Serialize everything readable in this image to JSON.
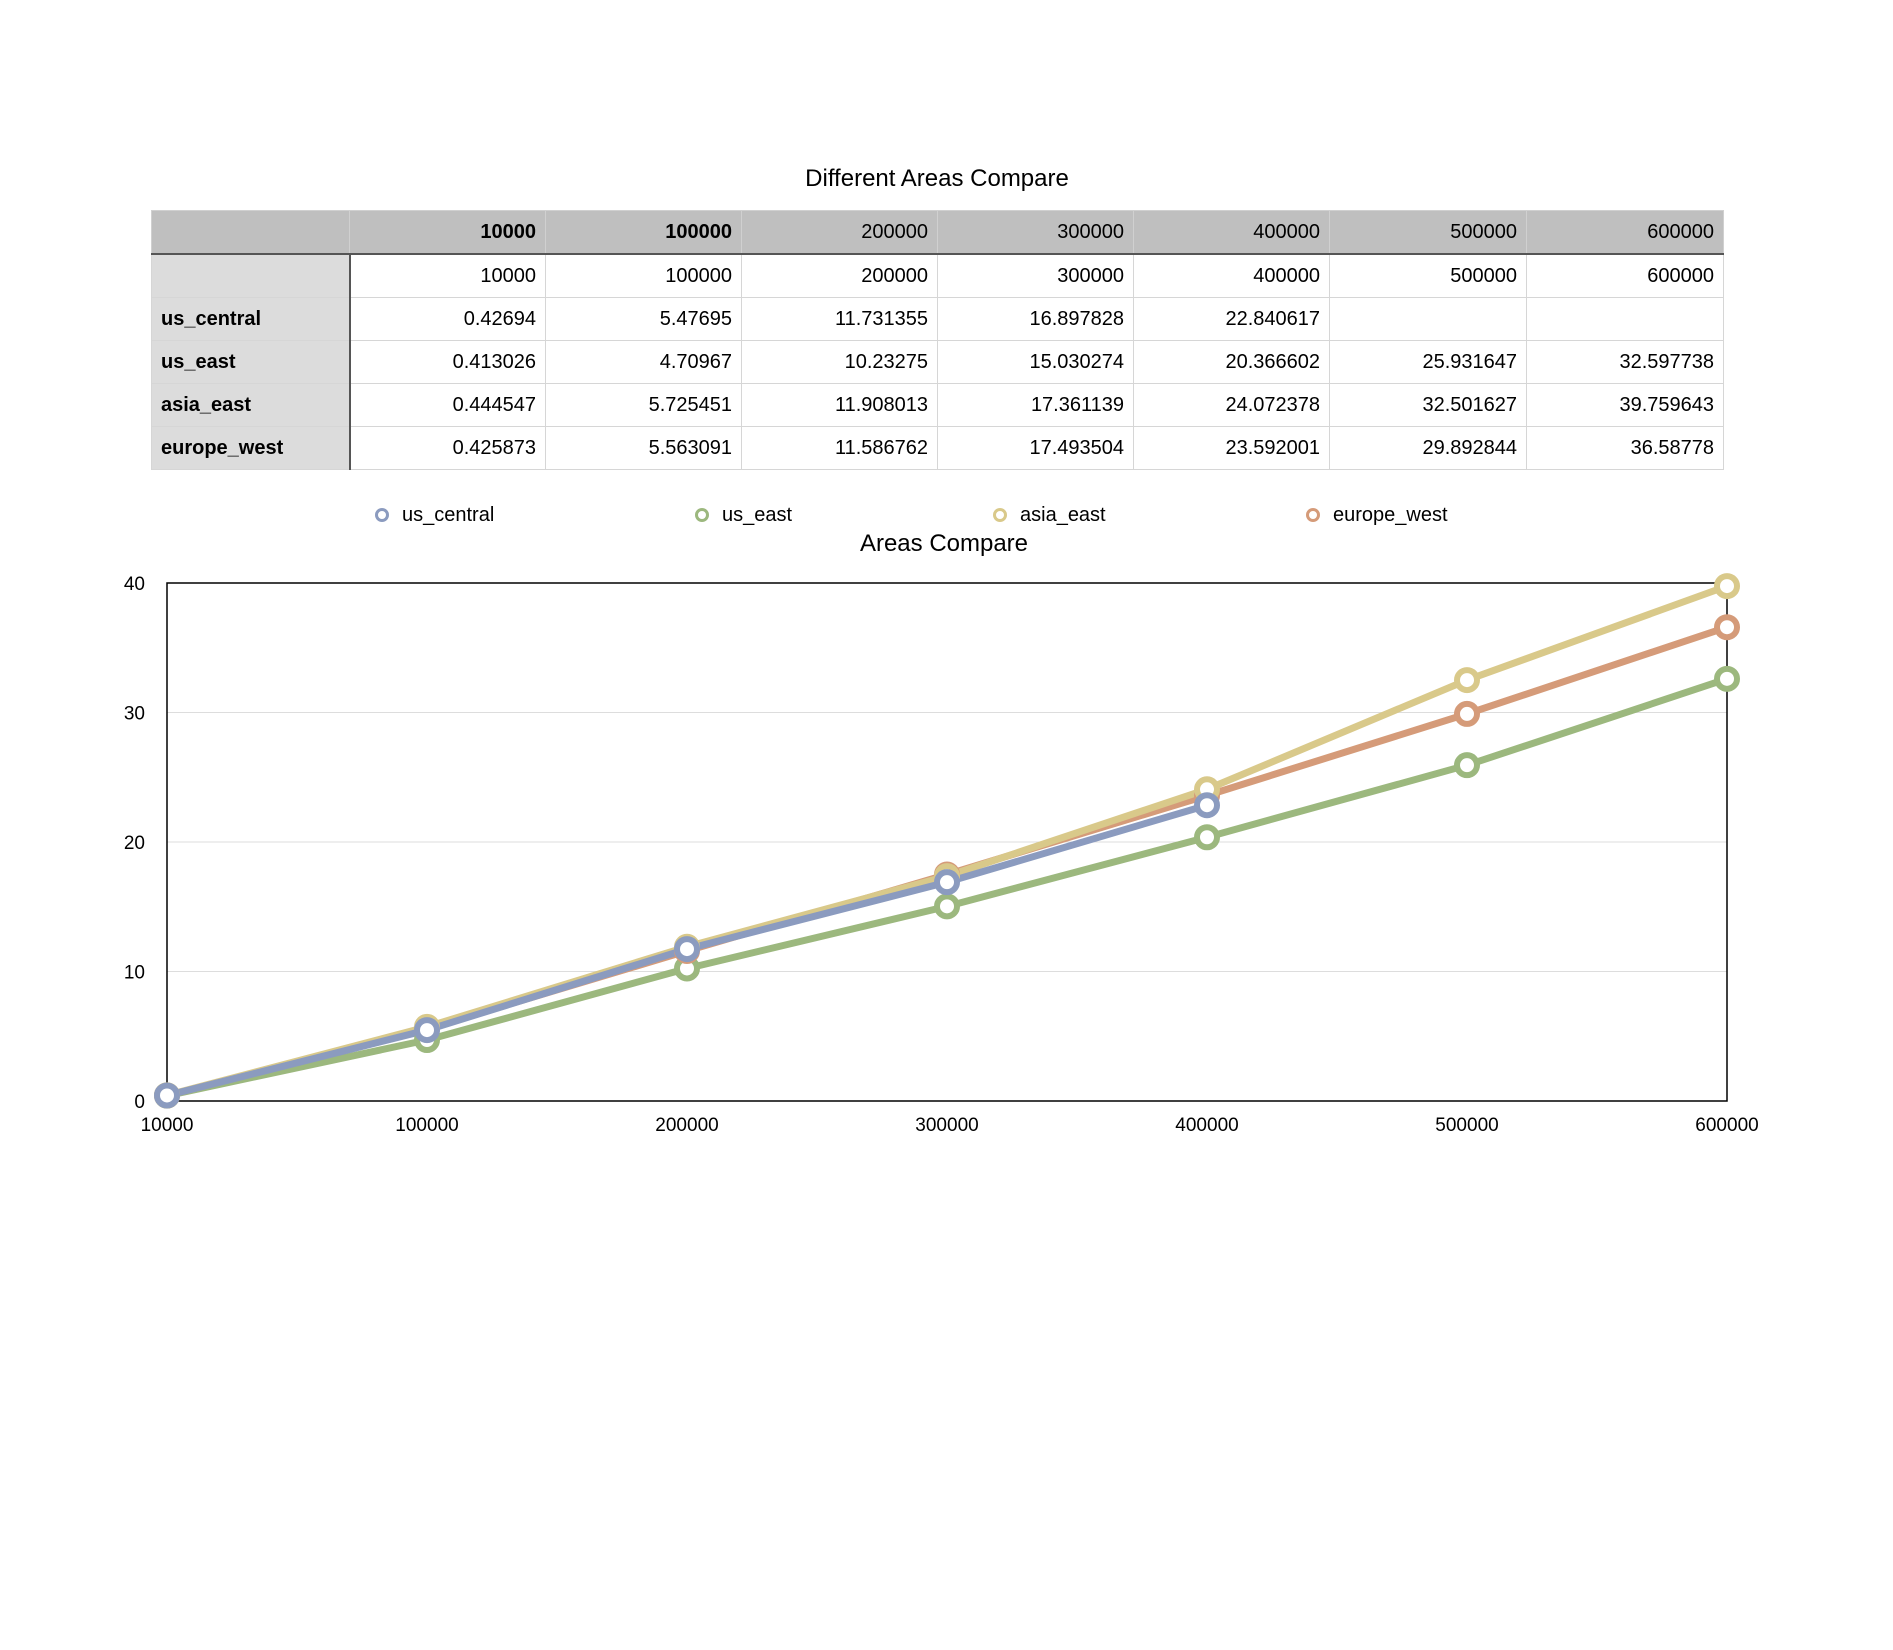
{
  "table": {
    "title": "Different Areas Compare",
    "header": [
      "",
      "10000",
      "100000",
      "200000",
      "300000",
      "400000",
      "500000",
      "600000"
    ],
    "header_bold": [
      false,
      true,
      true,
      false,
      false,
      false,
      false,
      false
    ],
    "rows": [
      {
        "label": "",
        "cells": [
          "10000",
          "100000",
          "200000",
          "300000",
          "400000",
          "500000",
          "600000"
        ]
      },
      {
        "label": "us_central",
        "cells": [
          "0.42694",
          "5.47695",
          "11.731355",
          "16.897828",
          "22.840617",
          "",
          ""
        ]
      },
      {
        "label": "us_east",
        "cells": [
          "0.413026",
          "4.70967",
          "10.23275",
          "15.030274",
          "20.366602",
          "25.931647",
          "32.597738"
        ]
      },
      {
        "label": "asia_east",
        "cells": [
          "0.444547",
          "5.725451",
          "11.908013",
          "17.361139",
          "24.072378",
          "32.501627",
          "39.759643"
        ]
      },
      {
        "label": "europe_west",
        "cells": [
          "0.425873",
          "5.563091",
          "11.586762",
          "17.493504",
          "23.592001",
          "29.892844",
          "36.58778"
        ]
      }
    ]
  },
  "chart_data": {
    "type": "line",
    "title": "Areas Compare",
    "xlabel": "",
    "ylabel": "",
    "categories": [
      "10000",
      "100000",
      "200000",
      "300000",
      "400000",
      "500000",
      "600000"
    ],
    "ylim": [
      0,
      40
    ],
    "yticks": [
      0,
      10,
      20,
      30,
      40
    ],
    "grid": true,
    "legend_position": "top",
    "series": [
      {
        "name": "us_central",
        "color": "#8b9bbf",
        "values": [
          0.42694,
          5.47695,
          11.731355,
          16.897828,
          22.840617,
          null,
          null
        ]
      },
      {
        "name": "us_east",
        "color": "#9cb87e",
        "values": [
          0.413026,
          4.70967,
          10.23275,
          15.030274,
          20.366602,
          25.931647,
          32.597738
        ]
      },
      {
        "name": "asia_east",
        "color": "#d9c98a",
        "values": [
          0.444547,
          5.725451,
          11.908013,
          17.361139,
          24.072378,
          32.501627,
          39.759643
        ]
      },
      {
        "name": "europe_west",
        "color": "#d59b79",
        "values": [
          0.425873,
          5.563091,
          11.586762,
          17.493504,
          23.592001,
          29.892844,
          36.58778
        ]
      }
    ]
  }
}
